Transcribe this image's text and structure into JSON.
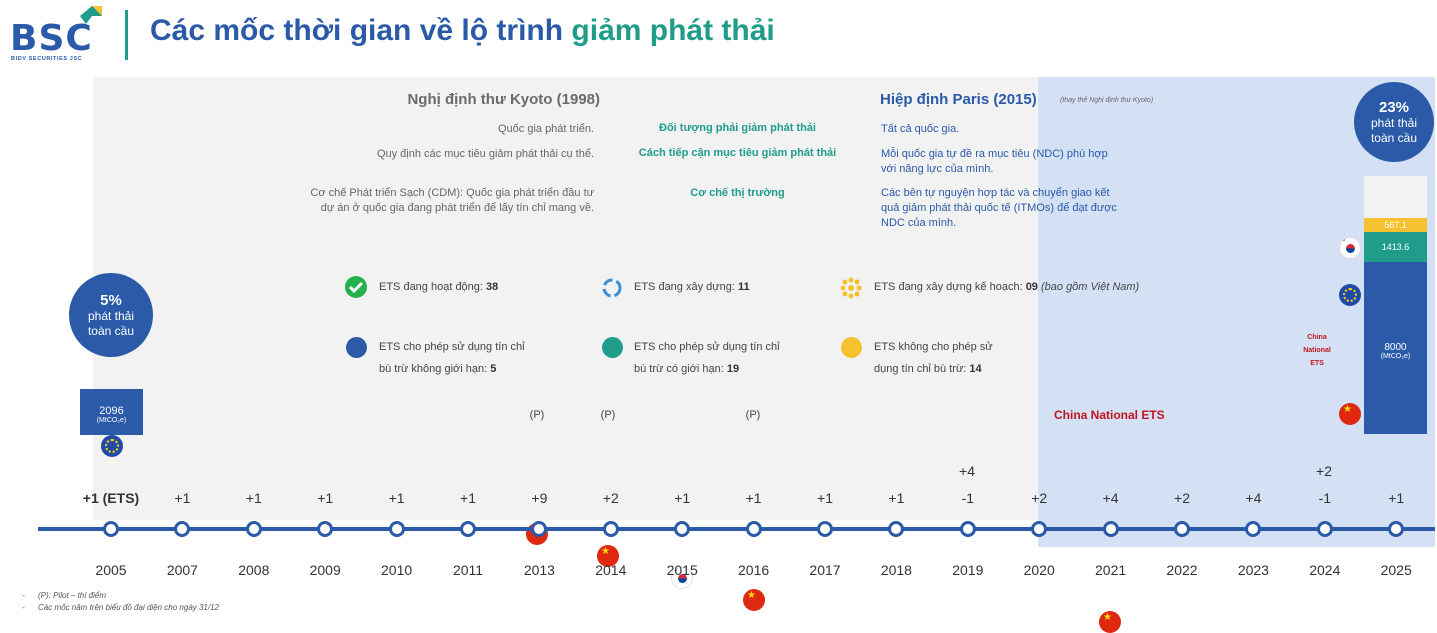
{
  "header": {
    "logo": "BSC",
    "logo_sub": "BIDV SECURITIES JSC",
    "title_main": "Các mốc thời gian về lộ trình ",
    "title_accent": "giảm phát thải",
    "colors": {
      "brand_blue": "#2a5aa8",
      "brand_teal": "#1f9c8a"
    }
  },
  "kyoto": {
    "title": "Nghị định thư Kyoto (1998)",
    "rows": [
      "Quốc gia phát triển.",
      "Quy định các mục tiêu giảm phát thải cụ thể.",
      "Cơ chế Phát triển Sạch (CDM): Quốc gia phát triển đầu tư dự án ở quốc gia đang phát triển để lấy tín chỉ mang về."
    ]
  },
  "middle": {
    "rows": [
      "Đối tượng phải giảm phát thải",
      "Cách tiếp cận mục tiêu giảm phát thải",
      "Cơ chế thị trường"
    ]
  },
  "paris": {
    "title": "Hiệp định Paris (2015)",
    "note": "(thay thế Nghị định thư Kyoto)",
    "rows": [
      "Tất cả quốc gia.",
      "Mỗi quốc gia tự đề ra mục tiêu (NDC) phù hợp với năng lực của mình.",
      "Các bên tự nguyện hợp tác và chuyển giao kết quả giảm phát thải quốc tế (ITMOs) để đạt được NDC của mình."
    ]
  },
  "legend": {
    "active": {
      "text": "ETS đang hoạt động: ",
      "value": "38",
      "icon": "check-icon"
    },
    "building": {
      "text": "ETS đang xây dựng: ",
      "value": "11",
      "icon": "refresh-icon"
    },
    "planning": {
      "text": "ETS đang xây dựng kế hoạch: ",
      "value": "09",
      "note": " (bao gồm Việt Nam)",
      "icon": "sun-icon"
    },
    "unlimited": {
      "text": "ETS cho phép sử dụng tín chỉ bù trừ không giới hạn: ",
      "value": "5",
      "color": "#2a5aa8"
    },
    "limited": {
      "text": "ETS cho phép sử dụng tín chỉ bù trừ có giới hạn: ",
      "value": "19",
      "color": "#1f9c8a"
    },
    "none": {
      "text": "ETS không cho phép sử dụng tín chỉ bù trừ: ",
      "value": "14",
      "color": "#f5c12e"
    }
  },
  "bubble_2005": {
    "pct": "5%",
    "line1": "phát thải",
    "line2": "toàn cầu"
  },
  "bubble_2025": {
    "pct": "23%",
    "line1": "phát thải",
    "line2": "toàn cầu"
  },
  "box_2005": {
    "value": "2096",
    "unit": "(MtCO₂e)"
  },
  "stack_2025": {
    "segments": [
      {
        "value": "567.1",
        "color": "#f5c12e"
      },
      {
        "value": "1413.6",
        "color": "#1f9c8a"
      },
      {
        "value": "8000",
        "unit": "(MtCO₂e)",
        "color": "#2a5aa8"
      }
    ],
    "china_label": [
      "China",
      "National",
      "ETS"
    ]
  },
  "pilot_label": "(P)",
  "china_2021_label": "China National ETS",
  "timeline": {
    "years": [
      "2005",
      "2007",
      "2008",
      "2009",
      "2010",
      "2011",
      "2013",
      "2014",
      "2015",
      "2016",
      "2017",
      "2018",
      "2019",
      "2020",
      "2021",
      "2022",
      "2023",
      "2024",
      "2025"
    ],
    "counts": [
      "+1 (ETS)",
      "+1",
      "+1",
      "+1",
      "+1",
      "+1",
      "+9",
      "+2",
      "+1",
      "+1",
      "+1",
      "+1",
      "-1",
      "+2",
      "+4",
      "+2",
      "+4",
      "-1",
      "+1"
    ],
    "extra_2019": "+4",
    "extra_2024": "+2"
  },
  "footnotes": [
    "(P): Pilot – thí điểm",
    "Các mốc năm trên biểu đồ đại diện cho ngày 31/12"
  ]
}
